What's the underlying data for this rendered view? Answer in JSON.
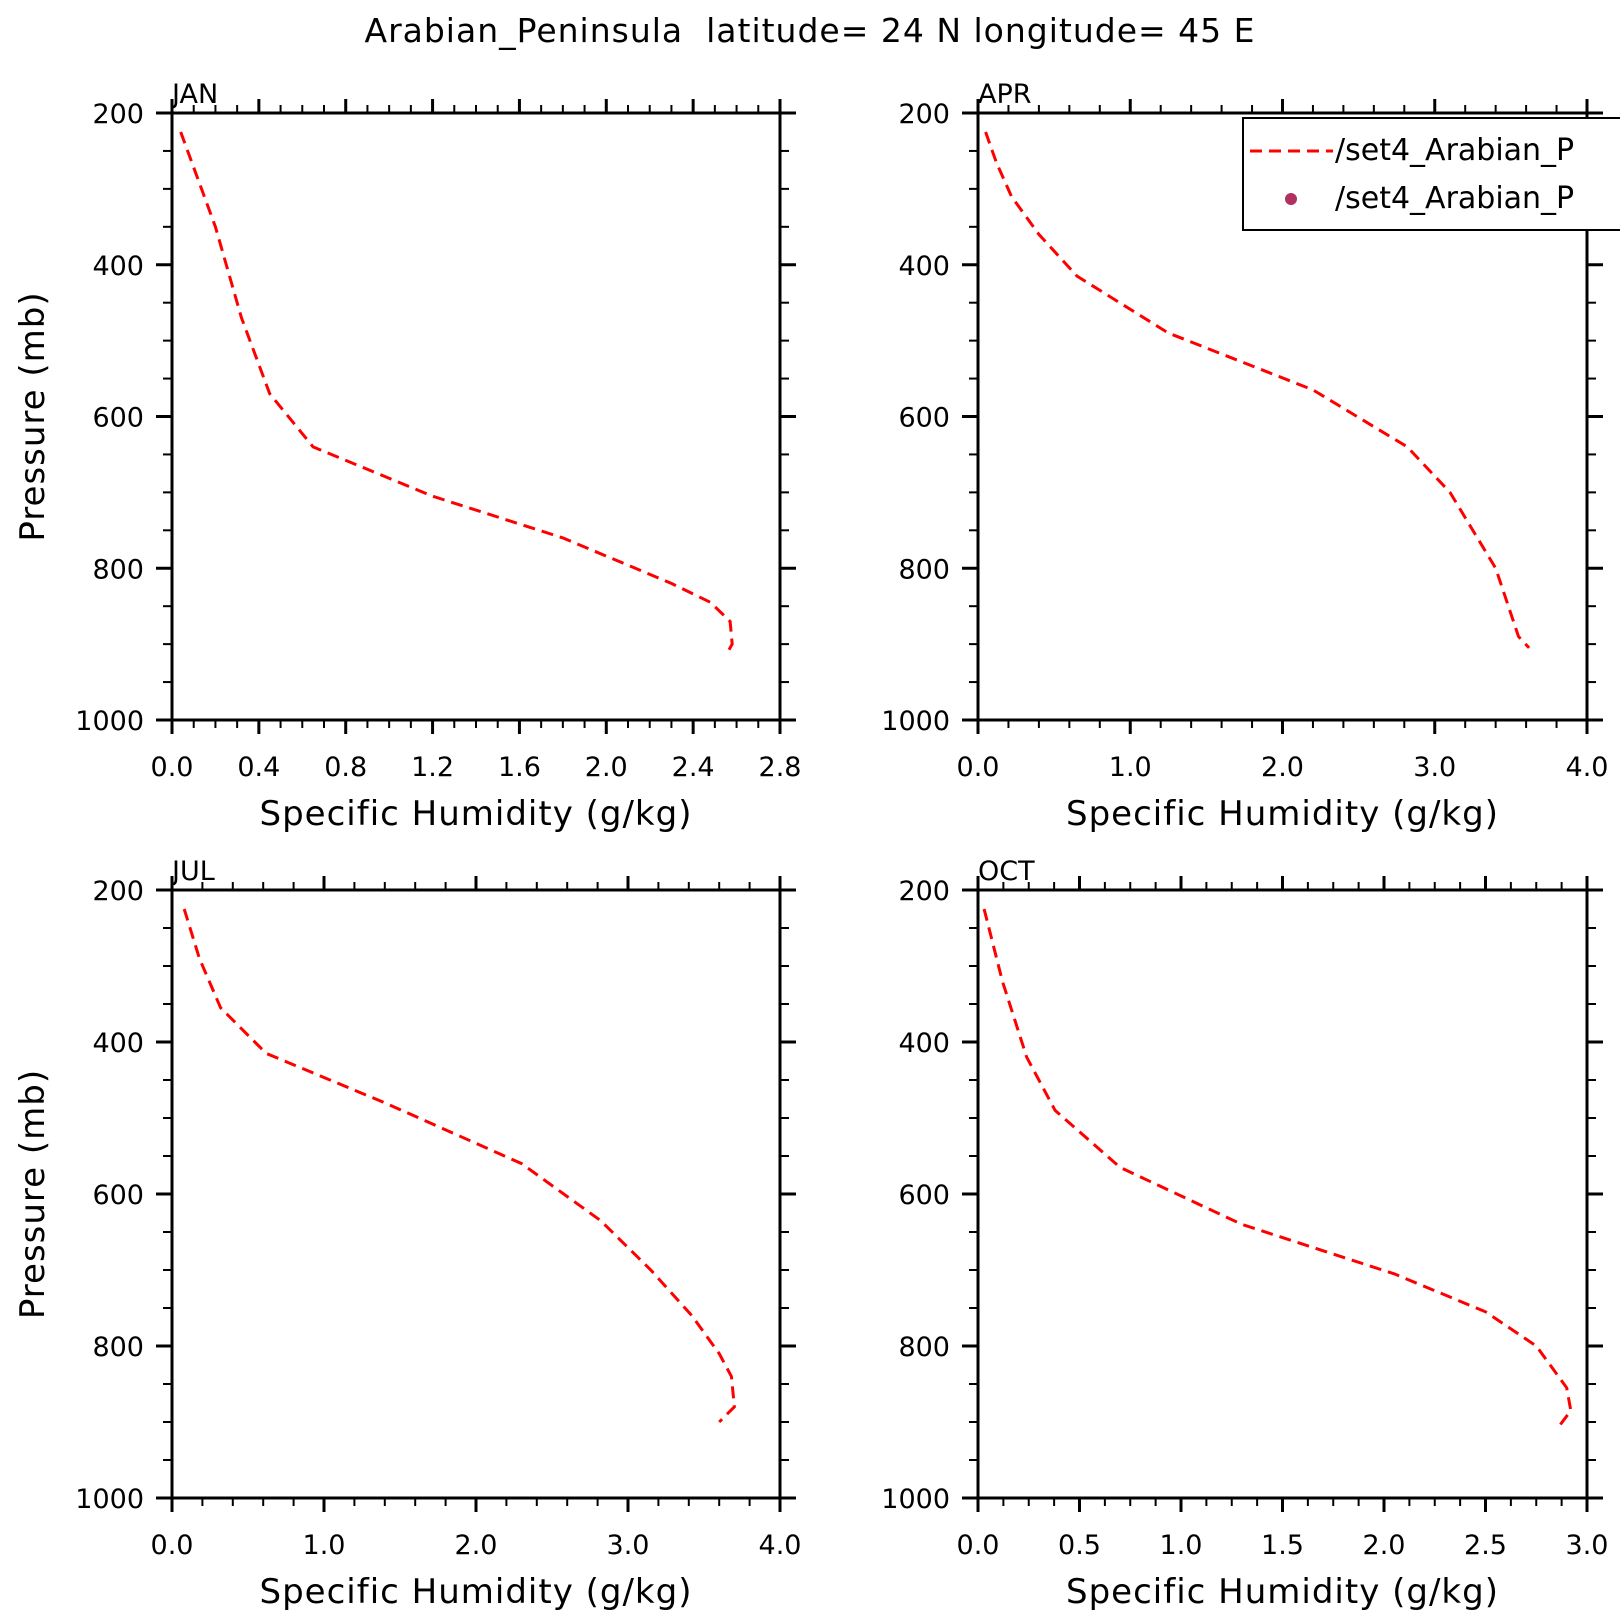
{
  "figure": {
    "title": "Arabian_Peninsula  latitude= 24 N longitude= 45 E"
  },
  "legend": {
    "placement": "top-right of APR panel (clipped at figure edge)",
    "entries": [
      {
        "label": "/set4_Arabian_P",
        "style": "dashed-line",
        "color": "#ff0000"
      },
      {
        "label": "/set4_Arabian_P",
        "style": "dot",
        "color": "#b03060"
      }
    ]
  },
  "chart_data": [
    {
      "type": "line",
      "panel": "JAN",
      "xlabel": "Specific Humidity (g/kg)",
      "ylabel": "Pressure (mb)",
      "xlim": [
        0.0,
        2.8
      ],
      "ylim": [
        200,
        1000
      ],
      "y_inverted": true,
      "xticks": [
        "0.0",
        "0.4",
        "0.8",
        "1.2",
        "1.6",
        "2.0",
        "2.4",
        "2.8"
      ],
      "yticks": [
        "200",
        "400",
        "600",
        "800",
        "1000"
      ],
      "series": [
        {
          "color": "#ff0000",
          "style": "dashed",
          "x": [
            0.04,
            0.2,
            0.32,
            0.45,
            0.65,
            1.2,
            1.8,
            2.3,
            2.48,
            2.57,
            2.58,
            2.55
          ],
          "y": [
            225,
            350,
            470,
            570,
            640,
            705,
            760,
            820,
            845,
            870,
            900,
            915
          ]
        }
      ]
    },
    {
      "type": "line",
      "panel": "APR",
      "xlabel": "Specific Humidity (g/kg)",
      "ylabel": "",
      "xlim": [
        0.0,
        4.0
      ],
      "ylim": [
        200,
        1000
      ],
      "y_inverted": true,
      "xticks": [
        "0.0",
        "1.0",
        "2.0",
        "3.0",
        "4.0"
      ],
      "yticks": [
        "200",
        "400",
        "600",
        "800",
        "1000"
      ],
      "series": [
        {
          "color": "#ff0000",
          "style": "dashed",
          "x": [
            0.05,
            0.12,
            0.22,
            0.4,
            0.65,
            1.25,
            2.2,
            2.82,
            3.1,
            3.4,
            3.55,
            3.62
          ],
          "y": [
            225,
            265,
            310,
            360,
            415,
            490,
            565,
            640,
            700,
            800,
            890,
            905
          ]
        }
      ]
    },
    {
      "type": "line",
      "panel": "JUL",
      "xlabel": "Specific Humidity (g/kg)",
      "ylabel": "Pressure (mb)",
      "xlim": [
        0.0,
        4.0
      ],
      "ylim": [
        200,
        1000
      ],
      "y_inverted": true,
      "xticks": [
        "0.0",
        "1.0",
        "2.0",
        "3.0",
        "4.0"
      ],
      "yticks": [
        "200",
        "400",
        "600",
        "800",
        "1000"
      ],
      "series": [
        {
          "color": "#ff0000",
          "style": "dashed",
          "x": [
            0.08,
            0.18,
            0.32,
            0.62,
            1.4,
            2.3,
            2.82,
            3.15,
            3.42,
            3.6,
            3.68,
            3.7,
            3.6
          ],
          "y": [
            225,
            290,
            355,
            415,
            480,
            560,
            635,
            700,
            760,
            810,
            840,
            880,
            900
          ]
        }
      ]
    },
    {
      "type": "line",
      "panel": "OCT",
      "xlabel": "Specific Humidity (g/kg)",
      "ylabel": "",
      "xlim": [
        0.0,
        3.0
      ],
      "ylim": [
        200,
        1000
      ],
      "y_inverted": true,
      "xticks": [
        "0.0",
        "0.5",
        "1.0",
        "1.5",
        "2.0",
        "2.5",
        "3.0"
      ],
      "yticks": [
        "200",
        "400",
        "600",
        "800",
        "1000"
      ],
      "series": [
        {
          "color": "#ff0000",
          "style": "dashed",
          "x": [
            0.03,
            0.12,
            0.24,
            0.38,
            0.7,
            1.3,
            2.05,
            2.5,
            2.75,
            2.9,
            2.92,
            2.85
          ],
          "y": [
            225,
            320,
            420,
            490,
            565,
            640,
            705,
            755,
            800,
            855,
            885,
            910
          ]
        }
      ]
    }
  ]
}
